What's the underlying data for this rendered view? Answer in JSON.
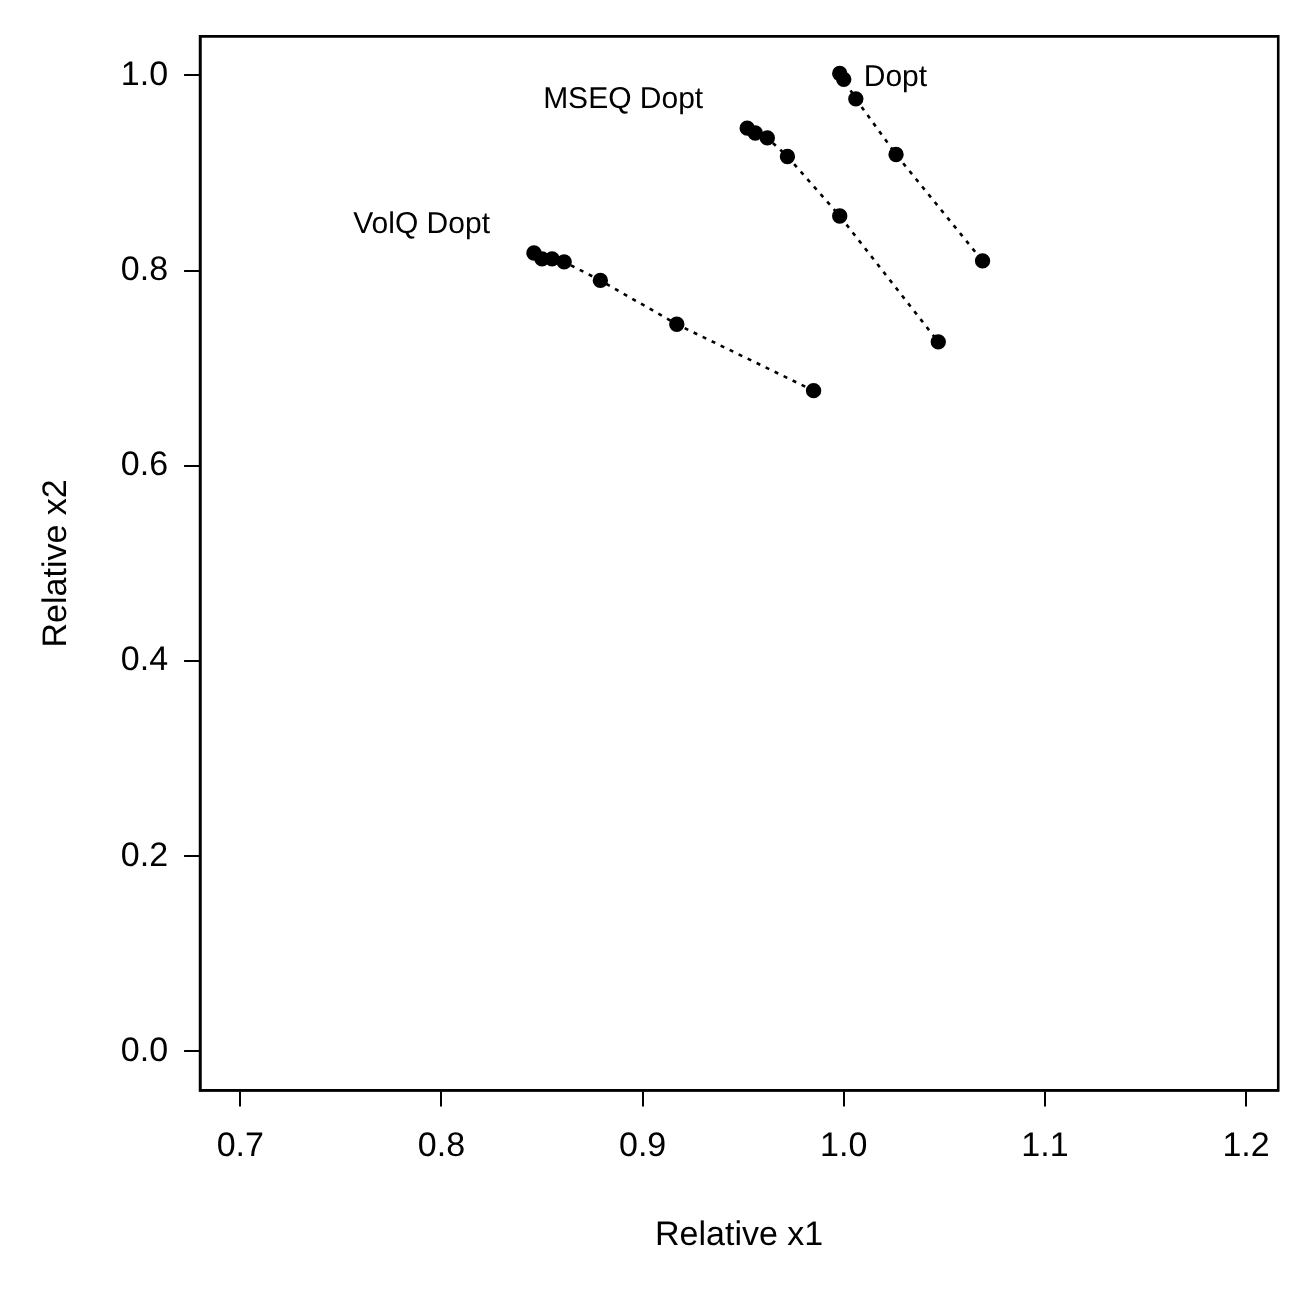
{
  "chart_data": {
    "type": "line",
    "xlabel": "Relative x1",
    "ylabel": "Relative x2",
    "xlim": [
      0.68,
      1.216
    ],
    "ylim": [
      -0.04,
      1.04
    ],
    "xticks": [
      0.7,
      0.8,
      0.9,
      {
        "value": 1,
        "label": "1.0"
      },
      1.1,
      1.2
    ],
    "yticks": [
      {
        "value": 0,
        "label": "0.0"
      },
      0.2,
      0.4,
      0.6,
      0.8,
      {
        "value": 1,
        "label": "1.0"
      }
    ],
    "grid": false,
    "legend": false,
    "marker": "circle",
    "line_style": "dotted",
    "series": [
      {
        "name": "Dopt",
        "color": "#000000",
        "x": [
          0.998,
          1.0,
          1.006,
          1.026,
          1.069
        ],
        "values": [
          1.002,
          0.996,
          0.976,
          0.919,
          0.81
        ]
      },
      {
        "name": "MSEQ Dopt",
        "color": "#000000",
        "x": [
          0.952,
          0.956,
          0.962,
          0.972,
          0.998,
          1.047
        ],
        "values": [
          0.946,
          0.941,
          0.936,
          0.917,
          0.856,
          0.727
        ]
      },
      {
        "name": "VolQ Dopt",
        "color": "#000000",
        "x": [
          0.846,
          0.85,
          0.855,
          0.861,
          0.879,
          0.917,
          0.985
        ],
        "values": [
          0.818,
          0.812,
          0.812,
          0.809,
          0.79,
          0.745,
          0.677
        ]
      }
    ]
  }
}
